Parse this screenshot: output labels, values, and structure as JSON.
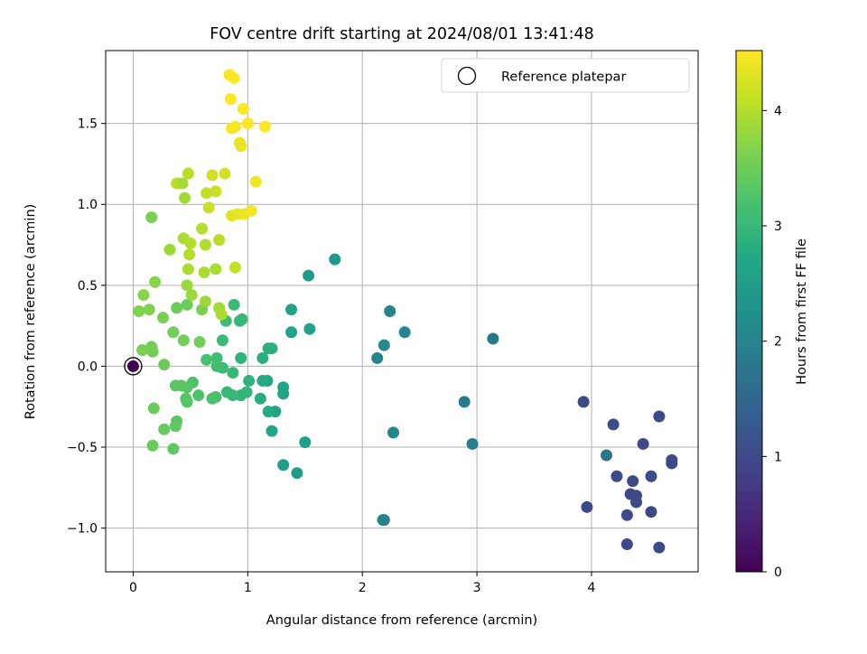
{
  "chart_data": {
    "type": "scatter",
    "title": "FOV centre drift starting at 2024/08/01 13:41:48",
    "xlabel": "Angular distance from reference (arcmin)",
    "ylabel": "Rotation from reference (arcmin)",
    "xlim": [
      -0.24,
      4.93
    ],
    "ylim": [
      -1.27,
      1.95
    ],
    "x_ticks": [
      0,
      1,
      2,
      3,
      4
    ],
    "x_tick_labels": [
      "0",
      "1",
      "2",
      "3",
      "4"
    ],
    "y_ticks": [
      -1.0,
      -0.5,
      0.0,
      0.5,
      1.0,
      1.5
    ],
    "y_tick_labels": [
      "−1.0",
      "−0.5",
      "0.0",
      "0.5",
      "1.0",
      "1.5"
    ],
    "grid": true,
    "legend": {
      "placement": "top-right",
      "entries": [
        "Reference platepar"
      ]
    },
    "colorbar": {
      "label": "Hours from first FF file",
      "range": [
        0,
        4.52
      ],
      "ticks": [
        0,
        1,
        2,
        3,
        4
      ],
      "tick_labels": [
        "0",
        "1",
        "2",
        "3",
        "4"
      ],
      "colormap": "viridis"
    },
    "reference_point": {
      "x": 0,
      "y": 0,
      "c": 0
    },
    "points": [
      {
        "x": 4.59,
        "y": -1.12,
        "c": 1.0
      },
      {
        "x": 4.31,
        "y": -1.1,
        "c": 1.0
      },
      {
        "x": 3.96,
        "y": -0.87,
        "c": 1.0
      },
      {
        "x": 4.31,
        "y": -0.92,
        "c": 1.0
      },
      {
        "x": 4.52,
        "y": -0.9,
        "c": 1.0
      },
      {
        "x": 4.39,
        "y": -0.84,
        "c": 1.0
      },
      {
        "x": 4.34,
        "y": -0.79,
        "c": 1.0
      },
      {
        "x": 4.39,
        "y": -0.8,
        "c": 1.0
      },
      {
        "x": 4.36,
        "y": -0.71,
        "c": 1.0
      },
      {
        "x": 4.22,
        "y": -0.68,
        "c": 1.0
      },
      {
        "x": 4.52,
        "y": -0.68,
        "c": 1.0
      },
      {
        "x": 4.7,
        "y": -0.6,
        "c": 1.0
      },
      {
        "x": 4.7,
        "y": -0.58,
        "c": 1.0
      },
      {
        "x": 4.45,
        "y": -0.48,
        "c": 1.0
      },
      {
        "x": 4.19,
        "y": -0.36,
        "c": 1.05
      },
      {
        "x": 4.59,
        "y": -0.31,
        "c": 1.0
      },
      {
        "x": 3.93,
        "y": -0.22,
        "c": 1.0
      },
      {
        "x": 4.13,
        "y": -0.55,
        "c": 1.75
      },
      {
        "x": 2.89,
        "y": -0.22,
        "c": 1.85
      },
      {
        "x": 2.96,
        "y": -0.48,
        "c": 1.9
      },
      {
        "x": 3.14,
        "y": 0.17,
        "c": 1.8
      },
      {
        "x": 2.18,
        "y": -0.95,
        "c": 2.0
      },
      {
        "x": 2.19,
        "y": -0.95,
        "c": 2.0
      },
      {
        "x": 2.27,
        "y": -0.41,
        "c": 2.05
      },
      {
        "x": 2.13,
        "y": 0.05,
        "c": 2.05
      },
      {
        "x": 2.19,
        "y": 0.13,
        "c": 2.1
      },
      {
        "x": 2.24,
        "y": 0.34,
        "c": 2.05
      },
      {
        "x": 2.37,
        "y": 0.21,
        "c": 2.05
      },
      {
        "x": 1.76,
        "y": 0.66,
        "c": 2.4
      },
      {
        "x": 1.53,
        "y": 0.56,
        "c": 2.45
      },
      {
        "x": 1.54,
        "y": 0.23,
        "c": 2.6
      },
      {
        "x": 1.38,
        "y": 0.35,
        "c": 2.6
      },
      {
        "x": 1.38,
        "y": 0.21,
        "c": 2.6
      },
      {
        "x": 1.5,
        "y": -0.47,
        "c": 2.55
      },
      {
        "x": 1.43,
        "y": -0.66,
        "c": 2.5
      },
      {
        "x": 1.31,
        "y": -0.61,
        "c": 2.55
      },
      {
        "x": 1.31,
        "y": -0.13,
        "c": 2.6
      },
      {
        "x": 1.31,
        "y": -0.17,
        "c": 2.65
      },
      {
        "x": 1.24,
        "y": -0.28,
        "c": 2.6
      },
      {
        "x": 1.21,
        "y": -0.4,
        "c": 2.7
      },
      {
        "x": 1.18,
        "y": -0.28,
        "c": 2.75
      },
      {
        "x": 1.17,
        "y": -0.09,
        "c": 2.7
      },
      {
        "x": 1.13,
        "y": -0.09,
        "c": 2.75
      },
      {
        "x": 1.11,
        "y": -0.2,
        "c": 2.8
      },
      {
        "x": 1.13,
        "y": 0.05,
        "c": 2.85
      },
      {
        "x": 1.18,
        "y": 0.11,
        "c": 2.8
      },
      {
        "x": 1.21,
        "y": 0.11,
        "c": 2.85
      },
      {
        "x": 1.01,
        "y": -0.09,
        "c": 2.9
      },
      {
        "x": 0.99,
        "y": -0.16,
        "c": 2.95
      },
      {
        "x": 0.94,
        "y": 0.05,
        "c": 2.9
      },
      {
        "x": 0.94,
        "y": -0.18,
        "c": 2.95
      },
      {
        "x": 0.87,
        "y": -0.04,
        "c": 3.0
      },
      {
        "x": 0.87,
        "y": -0.18,
        "c": 3.0
      },
      {
        "x": 0.82,
        "y": -0.16,
        "c": 3.0
      },
      {
        "x": 0.93,
        "y": 0.28,
        "c": 2.95
      },
      {
        "x": 0.95,
        "y": 0.29,
        "c": 3.0
      },
      {
        "x": 0.88,
        "y": 0.38,
        "c": 3.05
      },
      {
        "x": 0.81,
        "y": 0.28,
        "c": 3.1
      },
      {
        "x": 0.78,
        "y": 0.16,
        "c": 3.05
      },
      {
        "x": 0.78,
        "y": -0.01,
        "c": 3.1
      },
      {
        "x": 0.73,
        "y": 0.05,
        "c": 3.1
      },
      {
        "x": 0.73,
        "y": 0.0,
        "c": 3.15
      },
      {
        "x": 0.72,
        "y": -0.19,
        "c": 3.15
      },
      {
        "x": 0.69,
        "y": -0.2,
        "c": 3.2
      },
      {
        "x": 0.64,
        "y": 0.04,
        "c": 3.2
      },
      {
        "x": 0.57,
        "y": -0.18,
        "c": 3.25
      },
      {
        "x": 0.52,
        "y": -0.1,
        "c": 3.25
      },
      {
        "x": 0.47,
        "y": -0.13,
        "c": 3.3
      },
      {
        "x": 0.46,
        "y": -0.2,
        "c": 3.3
      },
      {
        "x": 0.47,
        "y": -0.22,
        "c": 3.3
      },
      {
        "x": 0.42,
        "y": -0.12,
        "c": 3.35
      },
      {
        "x": 0.37,
        "y": -0.12,
        "c": 3.35
      },
      {
        "x": 0.38,
        "y": -0.34,
        "c": 3.35
      },
      {
        "x": 0.37,
        "y": -0.37,
        "c": 3.4
      },
      {
        "x": 0.35,
        "y": -0.51,
        "c": 3.4
      },
      {
        "x": 0.27,
        "y": -0.39,
        "c": 3.45
      },
      {
        "x": 0.18,
        "y": -0.26,
        "c": 3.5
      },
      {
        "x": 0.17,
        "y": -0.49,
        "c": 3.5
      },
      {
        "x": 0.27,
        "y": 0.01,
        "c": 3.5
      },
      {
        "x": 0.17,
        "y": 0.09,
        "c": 3.55
      },
      {
        "x": 0.16,
        "y": 0.12,
        "c": 3.55
      },
      {
        "x": 0.08,
        "y": 0.1,
        "c": 3.6
      },
      {
        "x": 0.26,
        "y": 0.3,
        "c": 3.6
      },
      {
        "x": 0.35,
        "y": 0.21,
        "c": 3.55
      },
      {
        "x": 0.44,
        "y": 0.16,
        "c": 3.55
      },
      {
        "x": 0.58,
        "y": 0.15,
        "c": 3.55
      },
      {
        "x": 0.38,
        "y": 0.36,
        "c": 3.5
      },
      {
        "x": 0.47,
        "y": 0.38,
        "c": 3.5
      },
      {
        "x": 0.6,
        "y": 0.35,
        "c": 3.6
      },
      {
        "x": 0.14,
        "y": 0.35,
        "c": 3.65
      },
      {
        "x": 0.05,
        "y": 0.34,
        "c": 3.65
      },
      {
        "x": 0.09,
        "y": 0.44,
        "c": 3.7
      },
      {
        "x": 0.19,
        "y": 0.52,
        "c": 3.7
      },
      {
        "x": 0.16,
        "y": 0.92,
        "c": 3.6
      },
      {
        "x": 0.32,
        "y": 0.72,
        "c": 3.85
      },
      {
        "x": 0.47,
        "y": 0.5,
        "c": 3.85
      },
      {
        "x": 0.51,
        "y": 0.44,
        "c": 3.85
      },
      {
        "x": 0.63,
        "y": 0.4,
        "c": 3.85
      },
      {
        "x": 0.75,
        "y": 0.36,
        "c": 3.9
      },
      {
        "x": 0.77,
        "y": 0.32,
        "c": 3.95
      },
      {
        "x": 0.48,
        "y": 0.6,
        "c": 3.95
      },
      {
        "x": 0.62,
        "y": 0.58,
        "c": 3.95
      },
      {
        "x": 0.72,
        "y": 0.6,
        "c": 3.95
      },
      {
        "x": 0.89,
        "y": 0.61,
        "c": 4.1
      },
      {
        "x": 0.44,
        "y": 0.79,
        "c": 3.95
      },
      {
        "x": 0.5,
        "y": 0.76,
        "c": 4.0
      },
      {
        "x": 0.49,
        "y": 0.69,
        "c": 4.0
      },
      {
        "x": 0.63,
        "y": 0.75,
        "c": 4.0
      },
      {
        "x": 0.6,
        "y": 0.85,
        "c": 4.0
      },
      {
        "x": 0.75,
        "y": 0.78,
        "c": 4.05
      },
      {
        "x": 0.38,
        "y": 1.13,
        "c": 4.05
      },
      {
        "x": 0.45,
        "y": 1.04,
        "c": 3.9
      },
      {
        "x": 0.43,
        "y": 1.13,
        "c": 3.9
      },
      {
        "x": 0.48,
        "y": 1.19,
        "c": 4.05
      },
      {
        "x": 0.64,
        "y": 1.07,
        "c": 4.1
      },
      {
        "x": 0.66,
        "y": 0.98,
        "c": 4.15
      },
      {
        "x": 0.72,
        "y": 1.08,
        "c": 4.15
      },
      {
        "x": 0.69,
        "y": 1.18,
        "c": 4.2
      },
      {
        "x": 0.8,
        "y": 1.19,
        "c": 4.2
      },
      {
        "x": 0.86,
        "y": 0.93,
        "c": 4.3
      },
      {
        "x": 0.91,
        "y": 0.94,
        "c": 4.35
      },
      {
        "x": 0.97,
        "y": 0.94,
        "c": 4.4
      },
      {
        "x": 1.03,
        "y": 0.96,
        "c": 4.45
      },
      {
        "x": 1.07,
        "y": 1.14,
        "c": 4.45
      },
      {
        "x": 0.94,
        "y": 1.36,
        "c": 4.4
      },
      {
        "x": 0.93,
        "y": 1.38,
        "c": 4.4
      },
      {
        "x": 0.86,
        "y": 1.47,
        "c": 4.45
      },
      {
        "x": 0.89,
        "y": 1.48,
        "c": 4.45
      },
      {
        "x": 0.96,
        "y": 1.59,
        "c": 4.5
      },
      {
        "x": 1.0,
        "y": 1.5,
        "c": 4.5
      },
      {
        "x": 0.85,
        "y": 1.65,
        "c": 4.5
      },
      {
        "x": 0.84,
        "y": 1.8,
        "c": 4.5
      },
      {
        "x": 0.88,
        "y": 1.78,
        "c": 4.5
      },
      {
        "x": 1.15,
        "y": 1.48,
        "c": 4.5
      }
    ]
  }
}
